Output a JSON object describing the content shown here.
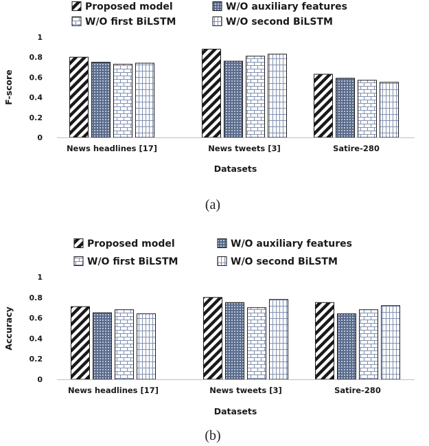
{
  "chart_data": [
    {
      "type": "bar",
      "caption": "(a)",
      "xlabel": "Datasets",
      "ylabel": "F-score",
      "ylim": [
        0,
        1
      ],
      "yticks": [
        "0",
        "0.2",
        "0.4",
        "0.6",
        "0.8",
        "1"
      ],
      "categories": [
        "News headlines [17]",
        "News tweets [3]",
        "Satire-280"
      ],
      "legend_position": "top",
      "series": [
        {
          "name": "Proposed model",
          "pattern": "diagonal-stripes",
          "values": [
            0.8,
            0.88,
            0.63
          ]
        },
        {
          "name": "W/O auxiliary features",
          "pattern": "dotted-grid",
          "values": [
            0.75,
            0.76,
            0.59
          ]
        },
        {
          "name": "W/O first BiLSTM",
          "pattern": "brick",
          "values": [
            0.73,
            0.81,
            0.57
          ]
        },
        {
          "name": "W/O second BiLSTM",
          "pattern": "vertical-grid",
          "values": [
            0.74,
            0.83,
            0.55
          ]
        }
      ]
    },
    {
      "type": "bar",
      "caption": "(b)",
      "xlabel": "Datasets",
      "ylabel": "Accuracy",
      "ylim": [
        0,
        1
      ],
      "yticks": [
        "0",
        "0.2",
        "0.4",
        "0.6",
        "0.8",
        "1"
      ],
      "categories": [
        "News headlines [17]",
        "News tweets [3]",
        "Satire-280"
      ],
      "legend_position": "top",
      "series": [
        {
          "name": "Proposed model",
          "pattern": "diagonal-stripes",
          "values": [
            0.71,
            0.8,
            0.75
          ]
        },
        {
          "name": "W/O auxiliary features",
          "pattern": "dotted-grid",
          "values": [
            0.65,
            0.75,
            0.64
          ]
        },
        {
          "name": "W/O first BiLSTM",
          "pattern": "brick",
          "values": [
            0.68,
            0.7,
            0.68
          ]
        },
        {
          "name": "W/O second BiLSTM",
          "pattern": "vertical-grid",
          "values": [
            0.64,
            0.78,
            0.72
          ]
        }
      ]
    }
  ]
}
